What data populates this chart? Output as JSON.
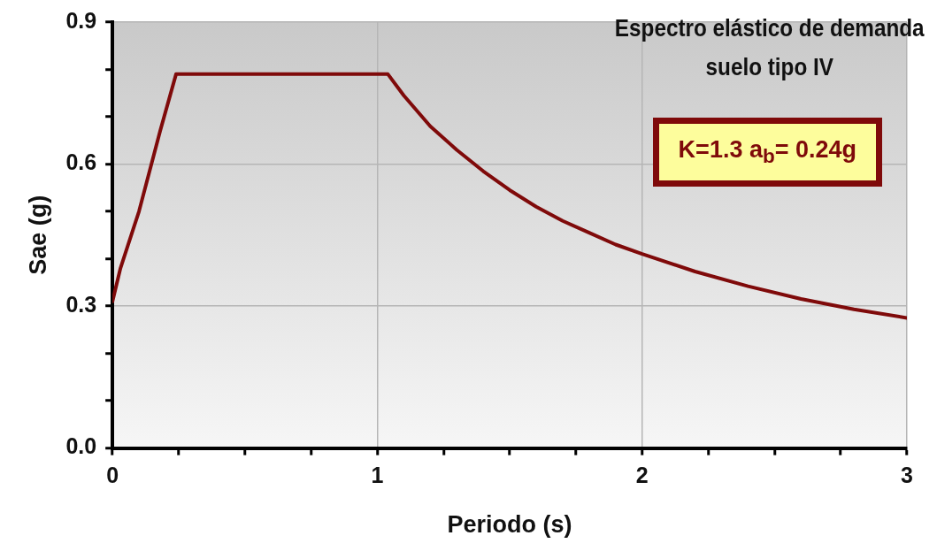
{
  "chart_data": {
    "type": "line",
    "title": "Espectro elástico de demanda",
    "subtitle": "suelo tipo IV",
    "xlabel": "Periodo (s)",
    "ylabel": "Sae (g)",
    "annotations": [
      "K=1.3  a$_{b}$= 0.24g"
    ],
    "series": [
      {
        "color": "#7f0a0a",
        "x": [
          0,
          0.03,
          0.1,
          0.18,
          0.24,
          1.04,
          1.1,
          1.2,
          1.3,
          1.4,
          1.5,
          1.6,
          1.7,
          1.8,
          1.9,
          2.0,
          2.2,
          2.4,
          2.6,
          2.8,
          3.0
        ],
        "values": [
          0.31,
          0.38,
          0.5,
          0.67,
          0.79,
          0.79,
          0.745,
          0.68,
          0.63,
          0.585,
          0.545,
          0.51,
          0.48,
          0.455,
          0.43,
          0.41,
          0.373,
          0.342,
          0.315,
          0.293,
          0.275
        ]
      }
    ],
    "xlim": [
      0,
      3
    ],
    "ylim": [
      0,
      0.9
    ],
    "xticks": [
      0,
      {
        "value": 0.25,
        "label": null
      },
      {
        "value": 0.5,
        "label": null
      },
      {
        "value": 0.75,
        "label": null
      },
      1,
      {
        "value": 1.25,
        "label": null
      },
      {
        "value": 1.5,
        "label": null
      },
      {
        "value": 1.75,
        "label": null
      },
      2,
      {
        "value": 2.25,
        "label": null
      },
      {
        "value": 2.5,
        "label": null
      },
      {
        "value": 2.75,
        "label": null
      },
      3
    ],
    "yticks": [
      {
        "value": 0,
        "label": "0.0"
      },
      {
        "value": 0.1,
        "label": null
      },
      {
        "value": 0.2,
        "label": null
      },
      0.3,
      {
        "value": 0.4,
        "label": null
      },
      {
        "value": 0.5,
        "label": null
      },
      0.6,
      {
        "value": 0.7,
        "label": null
      },
      {
        "value": 0.8,
        "label": null
      },
      0.9
    ],
    "grid": true,
    "legend": false,
    "marker": "none",
    "line_style": "solid"
  }
}
